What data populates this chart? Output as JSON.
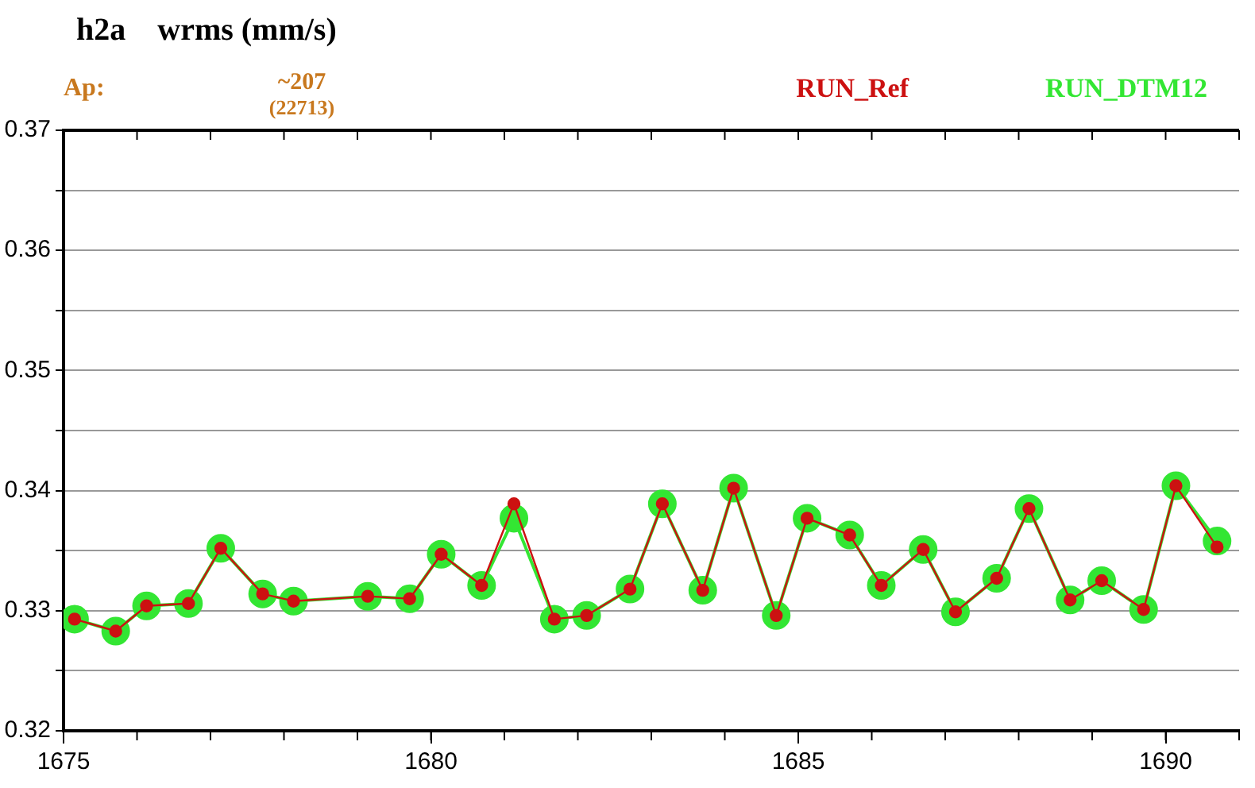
{
  "chart_data": {
    "type": "line",
    "title": "h2a    wrms (mm/s)",
    "annotations": [
      "Ap:",
      "~207",
      "(22713)"
    ],
    "xlim": [
      1675,
      1691
    ],
    "xticks": [
      1675,
      1680,
      1685,
      1690
    ],
    "ylim": [
      0.32,
      0.37
    ],
    "yticks": [
      0.32,
      {
        "value": 0.325,
        "label": null
      },
      0.33,
      {
        "value": 0.335,
        "label": null
      },
      0.34,
      {
        "value": 0.345,
        "label": null
      },
      0.35,
      {
        "value": 0.355,
        "label": null
      },
      0.36,
      {
        "value": 0.365,
        "label": null
      },
      0.37
    ],
    "grid": "y",
    "legend": "top right",
    "marker": "circle",
    "line_style": "solid",
    "x": [
      1675.15,
      1675.71,
      1676.13,
      1676.7,
      1677.14,
      1677.71,
      1678.13,
      1679.14,
      1679.71,
      1680.14,
      1680.69,
      1681.13,
      1681.68,
      1682.12,
      1682.71,
      1683.15,
      1683.7,
      1684.12,
      1684.7,
      1685.12,
      1685.7,
      1686.13,
      1686.7,
      1687.14,
      1687.7,
      1688.14,
      1688.7,
      1689.13,
      1689.7,
      1690.14,
      1690.7
    ],
    "series": [
      {
        "name": "RUN_Ref",
        "color": "#cc1111",
        "values": [
          0.3293,
          0.3283,
          0.3304,
          0.3306,
          0.3352,
          0.3314,
          0.3308,
          0.3312,
          0.331,
          0.3347,
          0.3321,
          0.3389,
          0.3293,
          0.3296,
          0.3318,
          0.3389,
          0.3317,
          0.3402,
          0.3296,
          0.3377,
          0.3363,
          0.3321,
          0.3351,
          0.3299,
          0.3327,
          0.3385,
          0.3309,
          0.3325,
          0.3301,
          0.3404,
          0.3353
        ]
      },
      {
        "name": "RUN_DTM12",
        "color": "#33e633",
        "values": [
          0.3293,
          0.3283,
          0.3304,
          0.3306,
          0.3352,
          0.3314,
          0.3308,
          0.3312,
          0.331,
          0.3347,
          0.3321,
          0.3377,
          0.3293,
          0.3296,
          0.3318,
          0.3389,
          0.3317,
          0.3402,
          0.3296,
          0.3377,
          0.3363,
          0.3321,
          0.3351,
          0.3299,
          0.3327,
          0.3385,
          0.3309,
          0.3325,
          0.3301,
          0.3404,
          0.3358
        ]
      }
    ]
  }
}
